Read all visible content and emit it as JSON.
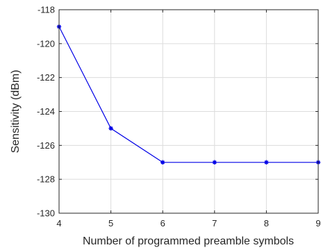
{
  "chart_data": {
    "type": "line",
    "title": "",
    "xlabel": "Number of programmed preamble symbols",
    "ylabel": "Sensitivity (dBm)",
    "xlim": [
      4,
      9
    ],
    "ylim": [
      -130,
      -118
    ],
    "x_ticks": [
      4,
      5,
      6,
      7,
      8,
      9
    ],
    "y_ticks": [
      -130,
      -128,
      -126,
      -124,
      -122,
      -120,
      -118
    ],
    "grid": true,
    "legend": "none",
    "series": [
      {
        "x": [
          4,
          5,
          6,
          7,
          8,
          9
        ],
        "values": [
          -119,
          -125,
          -127,
          -127,
          -127,
          -127
        ],
        "color": "#0000e6",
        "marker": "star"
      }
    ]
  }
}
